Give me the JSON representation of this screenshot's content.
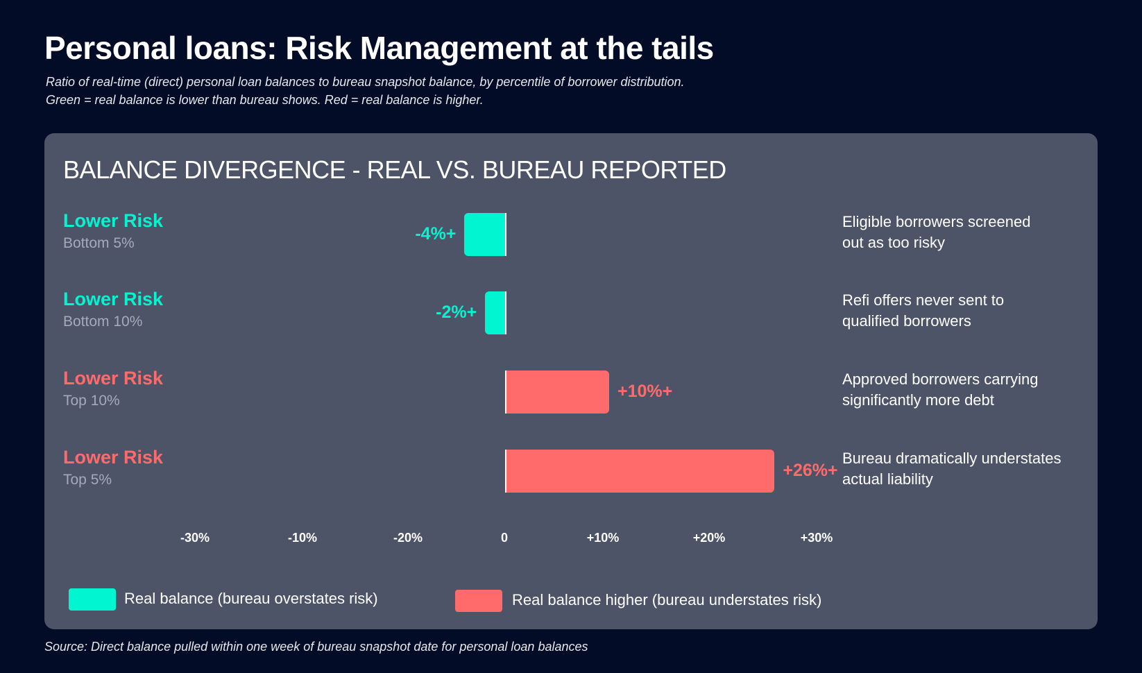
{
  "title": "Personal loans: Risk Management at the tails",
  "subtitle_lines": [
    "Ratio of real-time (direct) personal loan balances to bureau snapshot balance, by percentile of borrower distribution.",
    "Green = real balance is lower than bureau shows. Red = real balance is higher."
  ],
  "source": "Source: Direct balance pulled within one week of bureau snapshot date for personal loan balances",
  "colors": {
    "background": "#020c26",
    "panel": "#4e5468",
    "green": "#00f5d0",
    "red": "#ff6b6b"
  },
  "chart_data": {
    "type": "bar",
    "orientation": "horizontal",
    "title": "BALANCE DIVERGENCE - REAL VS. BUREAU REPORTED",
    "xlim": [
      -30,
      30
    ],
    "tick_labels": [
      "-30%",
      "-10%",
      "-20%",
      "0",
      "+10%",
      "+20%",
      "+30%"
    ],
    "rows": [
      {
        "label": "Lower Risk",
        "sublabel": "Bottom 5%",
        "value": -4,
        "value_label": "-4%+",
        "color": "#00f5d0",
        "note": [
          "Eligible borrowers screened",
          "out as too risky"
        ]
      },
      {
        "label": "Lower Risk",
        "sublabel": "Bottom 10%",
        "value": -2,
        "value_label": "-2%+",
        "color": "#00f5d0",
        "note": [
          "Refi offers never sent to",
          "qualified borrowers"
        ]
      },
      {
        "label": "Lower Risk",
        "sublabel": "Top 10%",
        "value": 10,
        "value_label": "+10%+",
        "color": "#ff6b6b",
        "note": [
          "Approved borrowers carrying",
          "significantly more debt"
        ]
      },
      {
        "label": "Lower Risk",
        "sublabel": "Top 5%",
        "value": 26,
        "value_label": "+26%+",
        "color": "#ff6b6b",
        "note": [
          "Bureau dramatically understates",
          "actual liability"
        ]
      }
    ],
    "legend": [
      {
        "label": "Real balance (bureau overstates risk)",
        "color": "#00f5d0"
      },
      {
        "label": "Real balance higher (bureau understates risk)",
        "color": "#ff6b6b"
      }
    ]
  }
}
